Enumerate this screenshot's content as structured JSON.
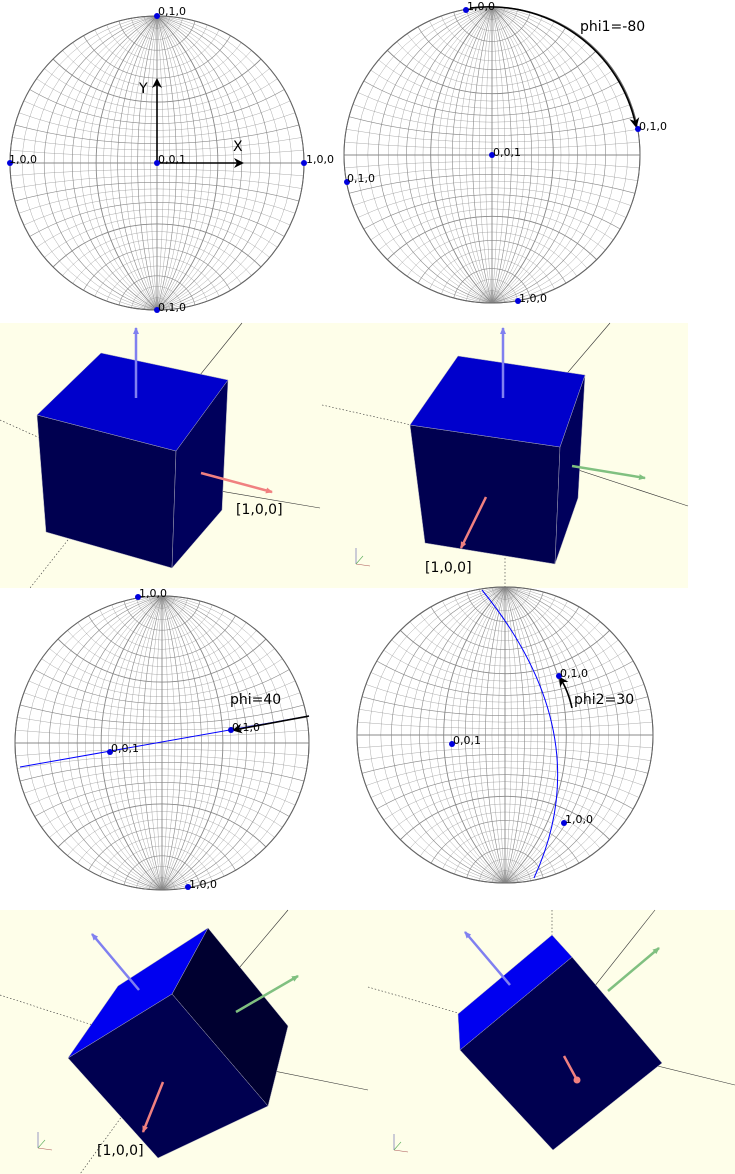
{
  "colors": {
    "scene_bg": "#fefee9",
    "cube_top": "#0000cc",
    "cube_front": "#000050",
    "cube_side": "#00005c",
    "cube_dark": "#000030",
    "cube_bright": "#0000f0",
    "arrow_red": "#f08080",
    "arrow_green": "#80c080",
    "arrow_blue": "#8080f0",
    "pole": "#0000dd",
    "trace": "#0000ff",
    "grid": "#888888"
  },
  "nets": [
    {
      "id": "net-1",
      "points": [
        {
          "label": "0,1,0"
        },
        {
          "label": "1,0,0"
        },
        {
          "label": "0,0,1"
        },
        {
          "label": "1,0,0"
        },
        {
          "label": "0,1,0"
        }
      ],
      "axes": {
        "x": "X",
        "y": "Y"
      }
    },
    {
      "id": "net-2",
      "points": [
        {
          "label": "1,0,0"
        },
        {
          "label": "0,1,0"
        },
        {
          "label": "0,0,1"
        },
        {
          "label": "0,1,0"
        },
        {
          "label": "1,0,0"
        }
      ],
      "rotation_label": "phi1=-80"
    },
    {
      "id": "net-3",
      "points": [
        {
          "label": "1,0,0"
        },
        {
          "label": "0,1,0"
        },
        {
          "label": "0,0,1"
        },
        {
          "label": "1,0,0"
        }
      ],
      "rotation_label": "phi=40"
    },
    {
      "id": "net-4",
      "points": [
        {
          "label": "0,1,0"
        },
        {
          "label": "0,0,1"
        },
        {
          "label": "1,0,0"
        }
      ],
      "rotation_label": "phi2=30"
    }
  ],
  "cubes": [
    {
      "id": "cube-1",
      "label": "[1,0,0]"
    },
    {
      "id": "cube-2",
      "label": "[1,0,0]"
    },
    {
      "id": "cube-3",
      "label": "[1,0,0]"
    },
    {
      "id": "cube-4",
      "label": ""
    }
  ]
}
